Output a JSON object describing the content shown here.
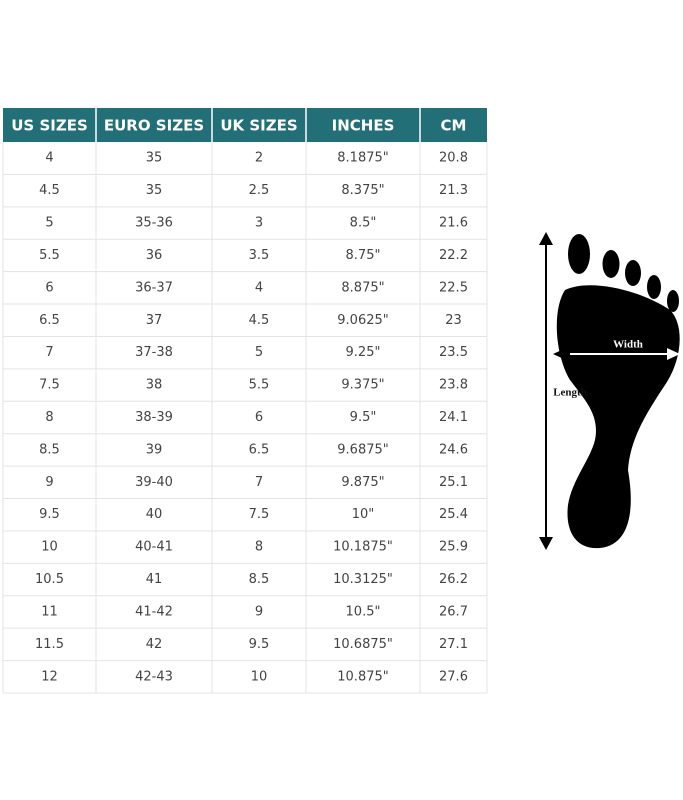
{
  "table": {
    "header": [
      "US SIZES",
      "EURO SIZES",
      "UK SIZES",
      "INCHES",
      "CM"
    ],
    "rows": [
      [
        "4",
        "35",
        "2",
        "8.1875\"",
        "20.8"
      ],
      [
        "4.5",
        "35",
        "2.5",
        "8.375\"",
        "21.3"
      ],
      [
        "5",
        "35-36",
        "3",
        "8.5\"",
        "21.6"
      ],
      [
        "5.5",
        "36",
        "3.5",
        "8.75\"",
        "22.2"
      ],
      [
        "6",
        "36-37",
        "4",
        "8.875\"",
        "22.5"
      ],
      [
        "6.5",
        "37",
        "4.5",
        "9.0625\"",
        "23"
      ],
      [
        "7",
        "37-38",
        "5",
        "9.25\"",
        "23.5"
      ],
      [
        "7.5",
        "38",
        "5.5",
        "9.375\"",
        "23.8"
      ],
      [
        "8",
        "38-39",
        "6",
        "9.5\"",
        "24.1"
      ],
      [
        "8.5",
        "39",
        "6.5",
        "9.6875\"",
        "24.6"
      ],
      [
        "9",
        "39-40",
        "7",
        "9.875\"",
        "25.1"
      ],
      [
        "9.5",
        "40",
        "7.5",
        "10\"",
        "25.4"
      ],
      [
        "10",
        "40-41",
        "8",
        "10.1875\"",
        "25.9"
      ],
      [
        "10.5",
        "41",
        "8.5",
        "10.3125\"",
        "26.2"
      ],
      [
        "11",
        "41-42",
        "9",
        "10.5\"",
        "26.7"
      ],
      [
        "11.5",
        "42",
        "9.5",
        "10.6875\"",
        "27.1"
      ],
      [
        "12",
        "42-43",
        "10",
        "10.875\"",
        "27.6"
      ]
    ]
  },
  "diagram": {
    "width_label": "Width",
    "length_label": "Length"
  }
}
